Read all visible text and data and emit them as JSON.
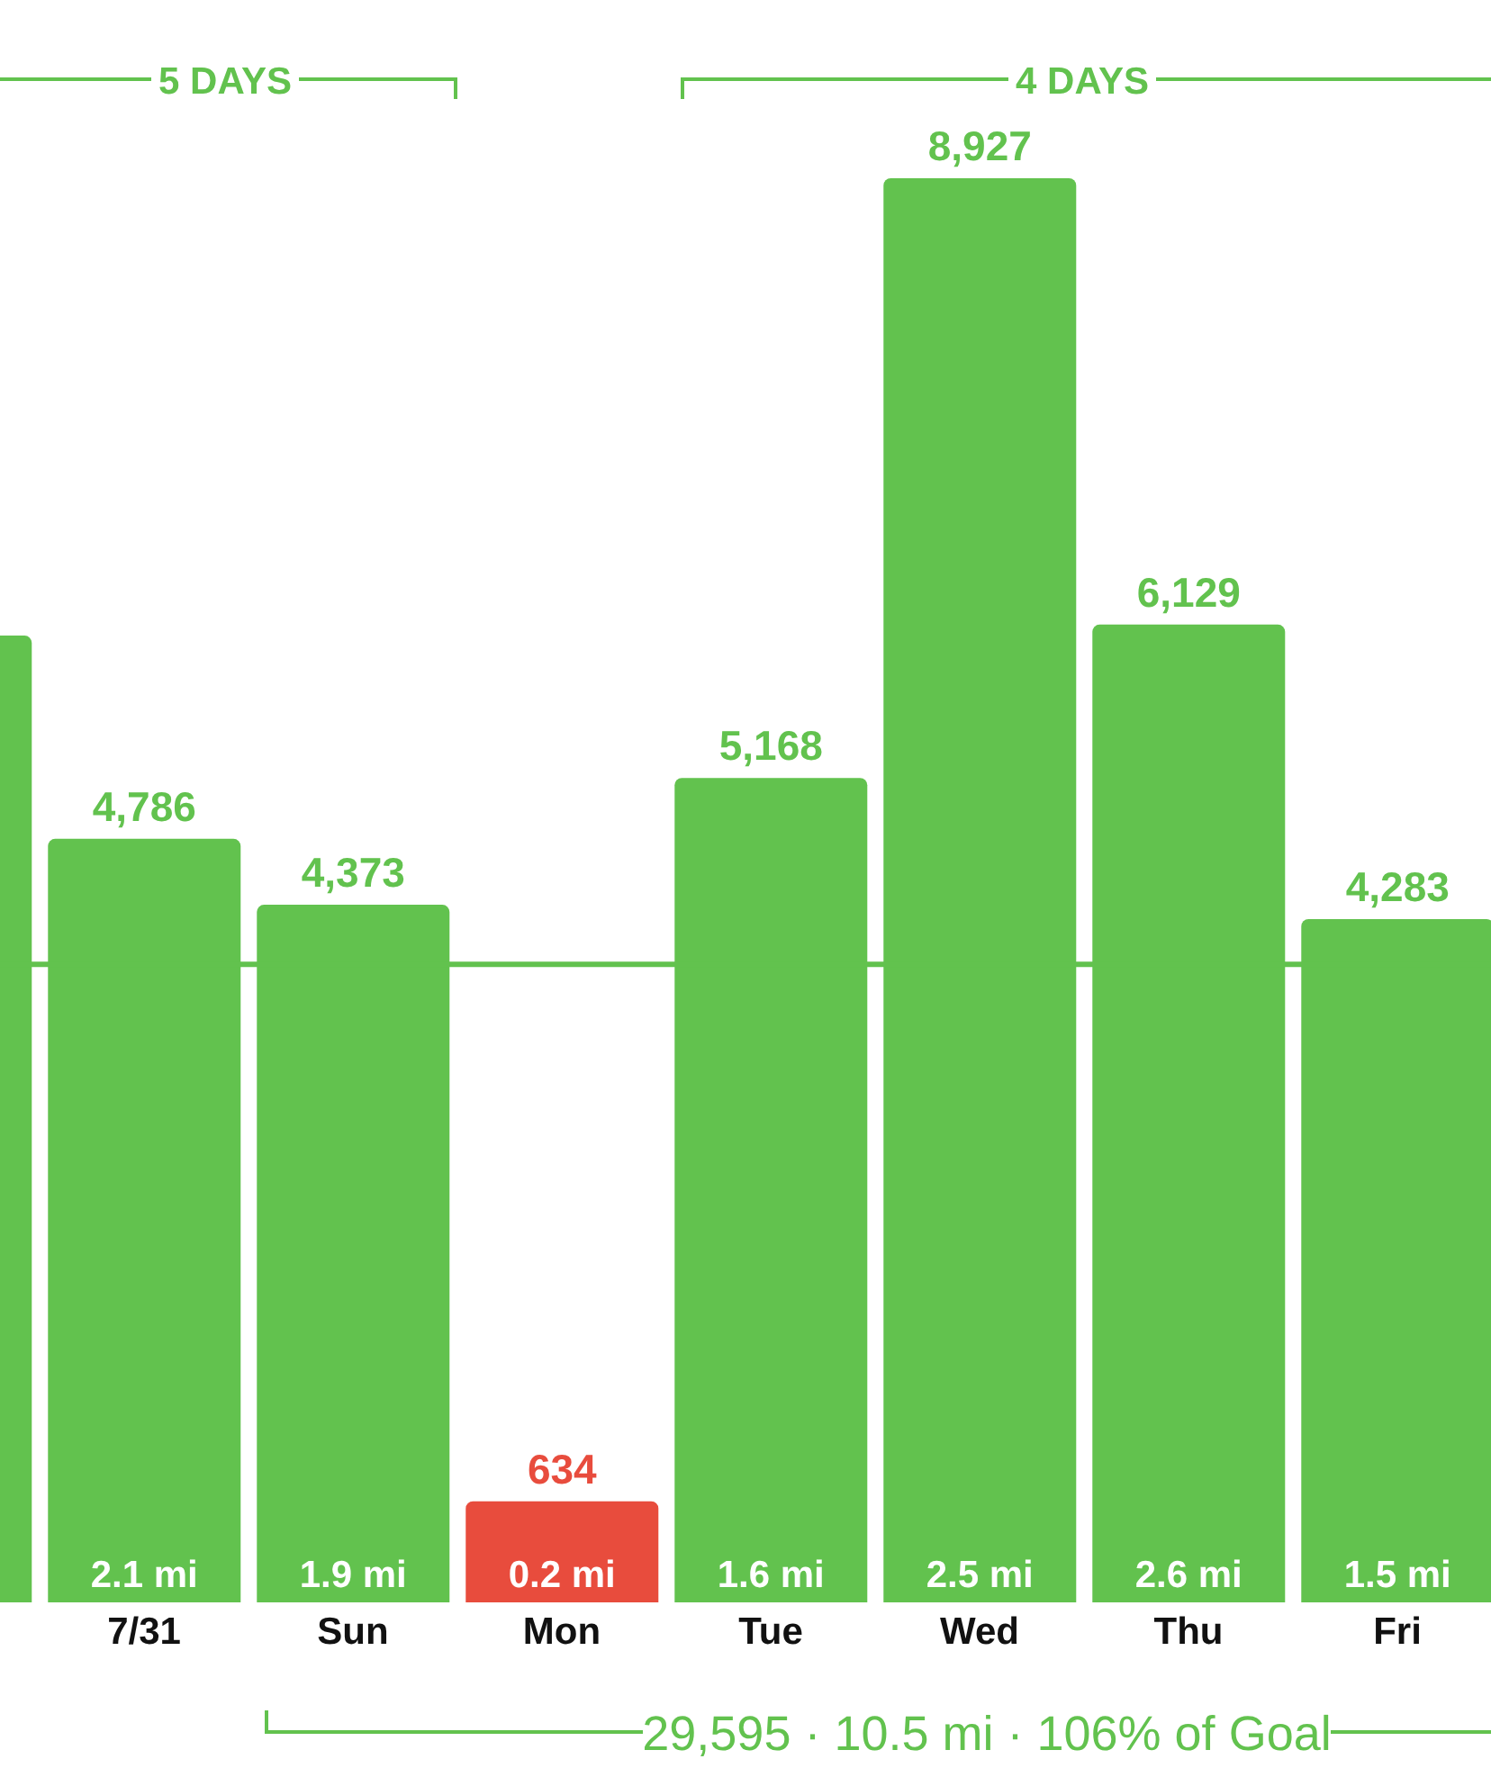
{
  "chart_data": {
    "type": "bar",
    "categories": [
      null,
      "7/31",
      "Sun",
      "Mon",
      "Tue",
      "Wed",
      "Thu",
      "Fri"
    ],
    "values": [
      6060,
      4786,
      4373,
      634,
      5168,
      8927,
      6129,
      4283
    ],
    "colors": [
      "#62c24e",
      "#62c24e",
      "#62c24e",
      "#e84c3d",
      "#62c24e",
      "#62c24e",
      "#62c24e",
      "#62c24e"
    ],
    "value_labels": [
      null,
      "4,786",
      "4,373",
      "634",
      "5,168",
      "8,927",
      "6,129",
      "4,283"
    ],
    "ref_lines": [
      {
        "axis": "y",
        "value": 4000,
        "color": "#62c24e"
      }
    ],
    "annotations": [
      "5 DAYS",
      "4 DAYS",
      "29,595 · 10.5 mi · 106% of Goal",
      "2.1 mi",
      "1.9 mi",
      "0.2 mi",
      "1.6 mi",
      "2.5 mi",
      "2.6 mi",
      "1.5 mi"
    ]
  }
}
